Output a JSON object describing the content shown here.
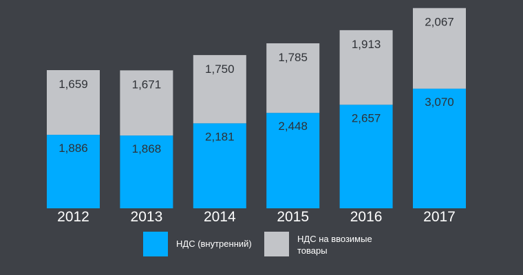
{
  "chart_data": {
    "type": "bar",
    "stacked": true,
    "categories": [
      "2012",
      "2013",
      "2014",
      "2015",
      "2016",
      "2017"
    ],
    "series": [
      {
        "name": "НДС (внутренний)",
        "color": "#00abff",
        "values": [
          1886,
          1868,
          2181,
          2448,
          2657,
          3070
        ],
        "labels": [
          "1,886",
          "1,868",
          "2,181",
          "2,448",
          "2,657",
          "3,070"
        ]
      },
      {
        "name": "НДС на ввозимые товары",
        "color": "#c2c4c8",
        "values": [
          1659,
          1671,
          1750,
          1785,
          1913,
          2067
        ],
        "labels": [
          "1,659",
          "1,671",
          "1,750",
          "1,785",
          "1,913",
          "2,067"
        ]
      }
    ],
    "grid": false,
    "legend": "bottom"
  },
  "legend": {
    "item1": "НДС (внутренний)",
    "item2_line1": "НДС на ввозимые",
    "item2_line2": "товары"
  }
}
